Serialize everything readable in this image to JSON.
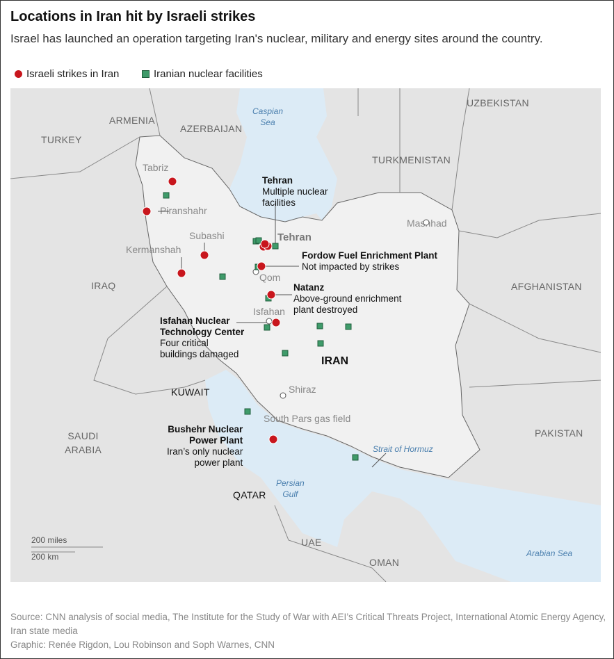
{
  "title": "Locations in Iran hit by Israeli strikes",
  "subtitle": "Israel has launched an operation targeting Iran's nuclear, military and energy sites around the country.",
  "legend": {
    "strikes": {
      "label": "Israeli strikes in Iran",
      "color": "#c8161d"
    },
    "nuclear": {
      "label": "Iranian nuclear facilities",
      "color": "#3f9b6a"
    }
  },
  "map": {
    "countries": {
      "armenia": "ARMENIA",
      "azerbaijan": "AZERBAIJAN",
      "turkey": "TURKEY",
      "uzbekistan": "UZBEKISTAN",
      "turkmenistan": "TURKMENISTAN",
      "iraq": "IRAQ",
      "afghanistan": "AFGHANISTAN",
      "iran": "IRAN",
      "kuwait": "KUWAIT",
      "saudi": "SAUDI\nARABIA",
      "pakistan": "PAKISTAN",
      "qatar": "QATAR",
      "uae": "UAE",
      "oman": "OMAN"
    },
    "seas": {
      "caspian": "Caspian\nSea",
      "gulf": "Persian\nGulf",
      "hormuz": "Strait of Hormuz",
      "arabian": "Arabian Sea"
    },
    "cities": {
      "tabriz": "Tabriz",
      "piranshahr": "Piranshahr",
      "subashi": "Subashi",
      "kermanshah": "Kermanshah",
      "tehran": "Tehran",
      "qom": "Qom",
      "mashhad": "Mashhad",
      "isfahan": "Isfahan",
      "shiraz": "Shiraz",
      "south_pars": "South Pars gas field"
    },
    "annotations": {
      "tehran": {
        "title": "Tehran",
        "text": "Multiple nuclear\nfacilities"
      },
      "fordow": {
        "title": "Fordow Fuel Enrichment Plant",
        "text": "Not impacted by strikes"
      },
      "natanz": {
        "title": "Natanz",
        "text": "Above-ground enrichment\nplant destroyed"
      },
      "isfahan": {
        "title": "Isfahan Nuclear\nTechnology Center",
        "text": "Four critical\nbuildings damaged"
      },
      "bushehr": {
        "title": "Bushehr Nuclear\nPower Plant",
        "text": "Iran’s only nuclear\npower plant"
      }
    },
    "scale": {
      "miles": "200 miles",
      "km": "200 km"
    },
    "colors": {
      "land": "#e4e4e4",
      "iran": "#f1f1f1",
      "water": "#dcebf6"
    }
  },
  "footer": {
    "source": "Source: CNN analysis of social media, The Institute for the Study of War with AEI’s Critical Threats Project, International Atomic Energy Agency, Iran state media",
    "credit": "Graphic: Renée Rigdon, Lou Robinson and Soph Warnes, CNN"
  }
}
